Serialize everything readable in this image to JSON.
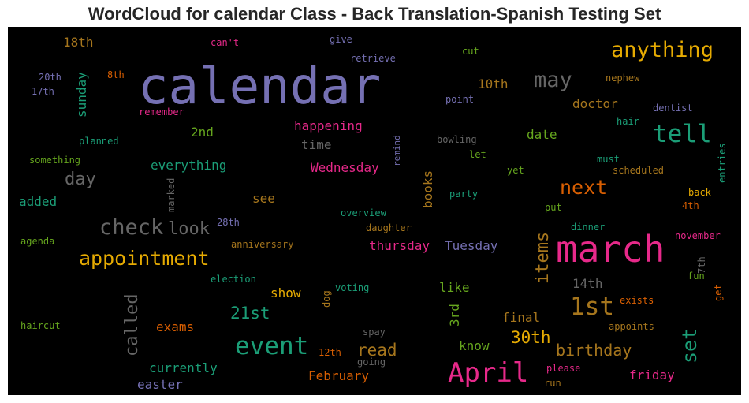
{
  "title": "WordCloud for calendar Class - Back Translation-Spanish Testing Set",
  "chart_data": {
    "type": "wordcloud",
    "title": "WordCloud for calendar Class - Back Translation-Spanish Testing Set",
    "background": "#000000",
    "palette": "Dark2",
    "words": [
      {
        "text": "calendar",
        "color": "#7570b3"
      },
      {
        "text": "march",
        "color": "#e7298a"
      },
      {
        "text": "April",
        "color": "#e7298a"
      },
      {
        "text": "event",
        "color": "#1b9e77"
      },
      {
        "text": "anything",
        "color": "#e6ab02"
      },
      {
        "text": "appointment",
        "color": "#e6ab02"
      },
      {
        "text": "check",
        "color": "#666666"
      },
      {
        "text": "tell",
        "color": "#1b9e77"
      },
      {
        "text": "1st",
        "color": "#a6761d"
      },
      {
        "text": "may",
        "color": "#666666"
      },
      {
        "text": "next",
        "color": "#d95f02"
      },
      {
        "text": "called",
        "color": "#666666"
      },
      {
        "text": "set",
        "color": "#1b9e77"
      },
      {
        "text": "30th",
        "color": "#e6ab02"
      },
      {
        "text": "items",
        "color": "#a6761d"
      },
      {
        "text": "look",
        "color": "#666666"
      },
      {
        "text": "day",
        "color": "#666666"
      },
      {
        "text": "birthday",
        "color": "#a6761d"
      },
      {
        "text": "21st",
        "color": "#1b9e77"
      },
      {
        "text": "read",
        "color": "#a6761d"
      },
      {
        "text": "happening",
        "color": "#e7298a"
      },
      {
        "text": "everything",
        "color": "#1b9e77"
      },
      {
        "text": "Wednesday",
        "color": "#e7298a"
      },
      {
        "text": "thursday",
        "color": "#e7298a"
      },
      {
        "text": "Tuesday",
        "color": "#7570b3"
      },
      {
        "text": "doctor",
        "color": "#a6761d"
      },
      {
        "text": "10th",
        "color": "#a6761d"
      },
      {
        "text": "date",
        "color": "#66a61e"
      },
      {
        "text": "time",
        "color": "#666666"
      },
      {
        "text": "2nd",
        "color": "#66a61e"
      },
      {
        "text": "18th",
        "color": "#a6761d"
      },
      {
        "text": "sunday",
        "color": "#1b9e77"
      },
      {
        "text": "see",
        "color": "#a6761d"
      },
      {
        "text": "books",
        "color": "#a6761d"
      },
      {
        "text": "added",
        "color": "#1b9e77"
      },
      {
        "text": "exams",
        "color": "#d95f02"
      },
      {
        "text": "currently",
        "color": "#1b9e77"
      },
      {
        "text": "easter",
        "color": "#7570b3"
      },
      {
        "text": "February",
        "color": "#d95f02"
      },
      {
        "text": "friday",
        "color": "#e7298a"
      },
      {
        "text": "know",
        "color": "#66a61e"
      },
      {
        "text": "like",
        "color": "#66a61e"
      },
      {
        "text": "14th",
        "color": "#666666"
      },
      {
        "text": "final",
        "color": "#a6761d"
      },
      {
        "text": "3rd",
        "color": "#66a61e"
      },
      {
        "text": "show",
        "color": "#e6ab02"
      },
      {
        "text": "remind",
        "color": "#7570b3"
      },
      {
        "text": "bowling",
        "color": "#666666"
      },
      {
        "text": "let",
        "color": "#66a61e"
      },
      {
        "text": "yet",
        "color": "#66a61e"
      },
      {
        "text": "party",
        "color": "#1b9e77"
      },
      {
        "text": "must",
        "color": "#1b9e77"
      },
      {
        "text": "scheduled",
        "color": "#a6761d"
      },
      {
        "text": "entries",
        "color": "#1b9e77"
      },
      {
        "text": "back",
        "color": "#e6ab02"
      },
      {
        "text": "4th",
        "color": "#d95f02"
      },
      {
        "text": "put",
        "color": "#66a61e"
      },
      {
        "text": "dinner",
        "color": "#1b9e77"
      },
      {
        "text": "november",
        "color": "#e7298a"
      },
      {
        "text": "7th",
        "color": "#666666"
      },
      {
        "text": "fun",
        "color": "#66a61e"
      },
      {
        "text": "get",
        "color": "#d95f02"
      },
      {
        "text": "exists",
        "color": "#d95f02"
      },
      {
        "text": "appoints",
        "color": "#a6761d"
      },
      {
        "text": "please",
        "color": "#e7298a"
      },
      {
        "text": "run",
        "color": "#a6761d"
      },
      {
        "text": "going",
        "color": "#666666"
      },
      {
        "text": "spay",
        "color": "#666666"
      },
      {
        "text": "12th",
        "color": "#d95f02"
      },
      {
        "text": "dog",
        "color": "#a6761d"
      },
      {
        "text": "voting",
        "color": "#1b9e77"
      },
      {
        "text": "election",
        "color": "#1b9e77"
      },
      {
        "text": "anniversary",
        "color": "#a6761d"
      },
      {
        "text": "daughter",
        "color": "#a6761d"
      },
      {
        "text": "overview",
        "color": "#1b9e77"
      },
      {
        "text": "28th",
        "color": "#7570b3"
      },
      {
        "text": "marked",
        "color": "#666666"
      },
      {
        "text": "agenda",
        "color": "#66a61e"
      },
      {
        "text": "haircut",
        "color": "#66a61e"
      },
      {
        "text": "something",
        "color": "#66a61e"
      },
      {
        "text": "planned",
        "color": "#1b9e77"
      },
      {
        "text": "remember",
        "color": "#e7298a"
      },
      {
        "text": "20th",
        "color": "#7570b3"
      },
      {
        "text": "17th",
        "color": "#7570b3"
      },
      {
        "text": "8th",
        "color": "#d95f02"
      },
      {
        "text": "can't",
        "color": "#e7298a"
      },
      {
        "text": "give",
        "color": "#7570b3"
      },
      {
        "text": "retrieve",
        "color": "#7570b3"
      },
      {
        "text": "cut",
        "color": "#66a61e"
      },
      {
        "text": "nephew",
        "color": "#a6761d"
      },
      {
        "text": "point",
        "color": "#7570b3"
      },
      {
        "text": "dentist",
        "color": "#7570b3"
      },
      {
        "text": "hair",
        "color": "#1b9e77"
      }
    ]
  }
}
